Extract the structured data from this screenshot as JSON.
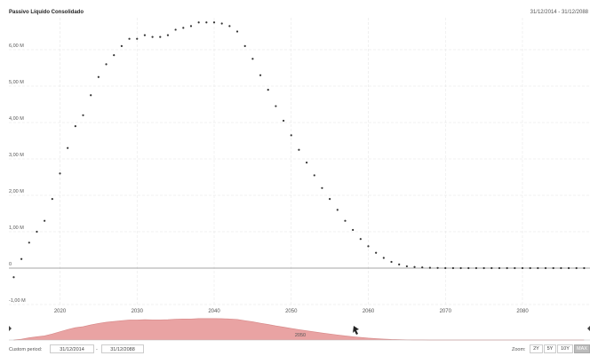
{
  "header": {
    "title": "Passivo Líquido Consolidado",
    "date_range": "31/12/2014 - 31/12/2088"
  },
  "controls": {
    "custom_period_label": "Custom period:",
    "from_date": "31/12/2014",
    "separator": "-",
    "to_date": "31/12/2088",
    "zoom_label": "Zoom:",
    "zoom_options": [
      "2Y",
      "5Y",
      "10Y",
      "MAX"
    ],
    "zoom_selected": "MAX"
  },
  "navigator": {
    "handle_label": "2050",
    "fill_color": "#e9a3a3",
    "line_color": "#d98c8c"
  },
  "colors": {
    "point": "#333333",
    "grid": "#e6e6e6",
    "zero_line": "#888888"
  },
  "chart_data": {
    "type": "scatter",
    "title": "Passivo Líquido Consolidado",
    "xlabel": "",
    "ylabel": "",
    "x_ticks": [
      "2020",
      "2030",
      "2040",
      "2050",
      "2060",
      "2070",
      "2080"
    ],
    "y_ticks": [
      "-1,00 M",
      "0",
      "1,00 M",
      "2,00 M",
      "3,00 M",
      "4,00 M",
      "5,00 M",
      "6,00 M"
    ],
    "xlim": [
      2014,
      2088
    ],
    "ylim": [
      -1000000,
      7000000
    ],
    "grid": true,
    "series": [
      {
        "x": [
          2014,
          2015,
          2016,
          2017,
          2018,
          2019,
          2020,
          2021,
          2022,
          2023,
          2024,
          2025,
          2026,
          2027,
          2028,
          2029,
          2030,
          2031,
          2032,
          2033,
          2034,
          2035,
          2036,
          2037,
          2038,
          2039,
          2040,
          2041,
          2042,
          2043,
          2044,
          2045,
          2046,
          2047,
          2048,
          2049,
          2050,
          2051,
          2052,
          2053,
          2054,
          2055,
          2056,
          2057,
          2058,
          2059,
          2060,
          2061,
          2062,
          2063,
          2064,
          2065,
          2066,
          2067,
          2068,
          2069,
          2070,
          2071,
          2072,
          2073,
          2074,
          2075,
          2076,
          2077,
          2078,
          2079,
          2080,
          2081,
          2082,
          2083,
          2084,
          2085,
          2086,
          2087,
          2088
        ],
        "y": [
          -250000,
          250000,
          700000,
          1000000,
          1300000,
          1900000,
          2600000,
          3300000,
          3900000,
          4200000,
          4750000,
          5250000,
          5600000,
          5850000,
          6100000,
          6300000,
          6300000,
          6400000,
          6350000,
          6350000,
          6400000,
          6550000,
          6600000,
          6650000,
          6750000,
          6750000,
          6750000,
          6720000,
          6650000,
          6500000,
          6100000,
          5750000,
          5300000,
          4900000,
          4450000,
          4050000,
          3650000,
          3250000,
          2900000,
          2550000,
          2200000,
          1900000,
          1600000,
          1300000,
          1050000,
          800000,
          600000,
          420000,
          280000,
          170000,
          100000,
          50000,
          30000,
          20000,
          10000,
          5000,
          0,
          0,
          0,
          0,
          0,
          0,
          0,
          0,
          0,
          0,
          0,
          0,
          0,
          0,
          0,
          0,
          0,
          0,
          0
        ]
      }
    ]
  }
}
